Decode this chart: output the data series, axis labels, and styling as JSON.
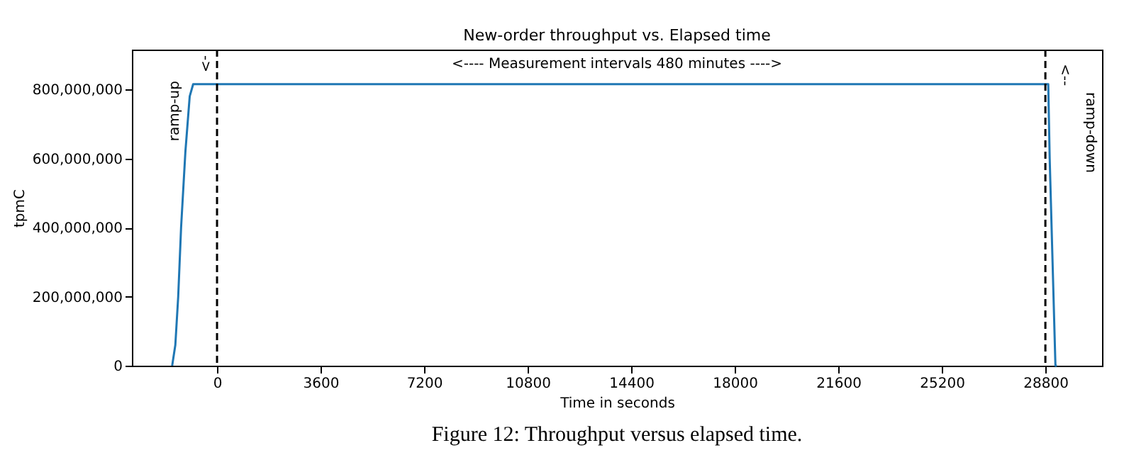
{
  "chart_data": {
    "type": "line",
    "title": "New-order throughput vs. Elapsed time",
    "xlabel": "Time in seconds",
    "ylabel": "tpmC",
    "x": [
      -1560,
      -1450,
      -1350,
      -1250,
      -1100,
      -950,
      -830,
      28900,
      28950,
      29050,
      29150,
      29200
    ],
    "series": [
      {
        "color": "#1f77b4",
        "values": [
          0,
          60000000,
          200000000,
          400000000,
          620000000,
          780000000,
          815000000,
          815000000,
          600000000,
          300000000,
          0,
          0
        ]
      }
    ],
    "xlim": [
      -2960,
      30770
    ],
    "xticks": [
      0,
      3600,
      7200,
      10800,
      14400,
      18000,
      21600,
      25200,
      28800
    ],
    "ylim": [
      0,
      915000000
    ],
    "yticks": [
      0,
      {
        "value": 200000000,
        "label": "200,000,000"
      },
      {
        "value": 400000000,
        "label": "400,000,000"
      },
      {
        "value": 600000000,
        "label": "600,000,000"
      },
      {
        "value": 800000000,
        "label": "800,000,000"
      }
    ],
    "ref_lines": [
      {
        "axis": "x",
        "value": 0,
        "color": "#000000",
        "line_style": "dashed"
      },
      {
        "axis": "x",
        "value": 28800,
        "color": "#000000",
        "line_style": "dashed"
      }
    ],
    "annotations": [
      "ramp-up",
      "->",
      "<----   Measurement intervals 480 minutes   ---->",
      "<--",
      "ramp-down",
      "Figure 12: Throughput versus elapsed time."
    ],
    "grid": false,
    "line_style": "solid",
    "marker": "none"
  }
}
